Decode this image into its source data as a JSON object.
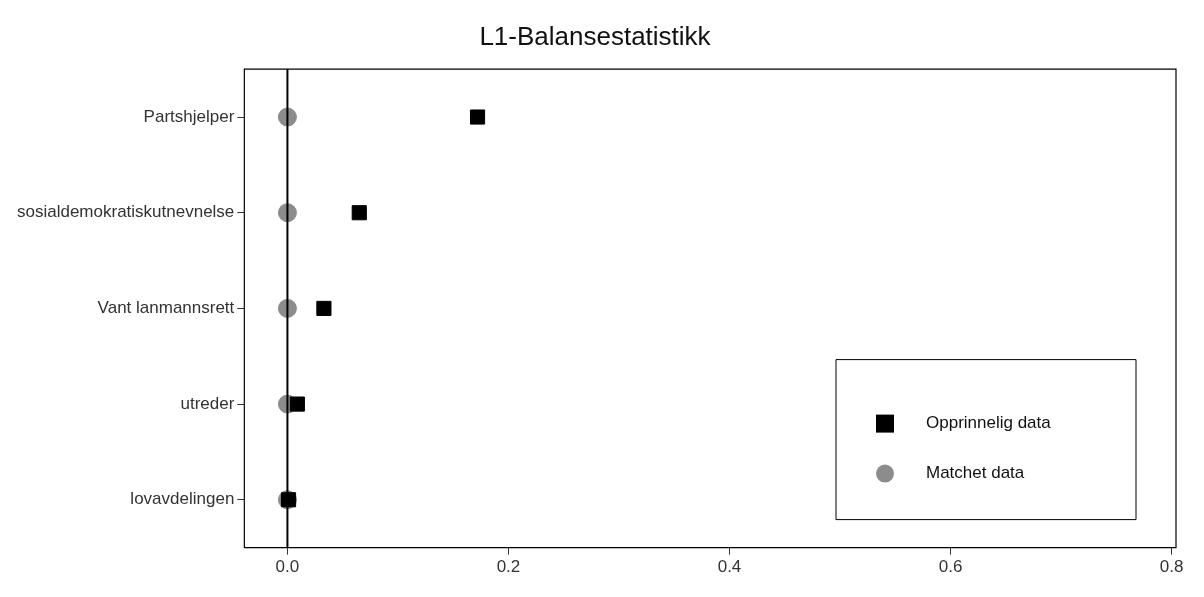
{
  "chart_data": {
    "type": "scatter",
    "title": "L1-Balansestatistikk",
    "orientation": "horizontal",
    "categories": [
      "Partshjelper",
      "sosialdemokratiskutnevnelse",
      "Vant lanmannsrett",
      "utreder",
      "lovavdelingen"
    ],
    "series": [
      {
        "name": "Opprinnelig data",
        "color": "#000000",
        "marker": "square",
        "values": [
          0.172,
          0.065,
          0.033,
          0.009,
          0.001
        ]
      },
      {
        "name": "Matchet data",
        "color": "#8c8c8c",
        "marker": "circle",
        "values": [
          0,
          0,
          0,
          0,
          0
        ]
      }
    ],
    "xlim": [
      -0.039,
      0.804
    ],
    "xticks": [
      {
        "value": 0,
        "label": "0.0"
      },
      {
        "value": 0.2,
        "label": "0.2"
      },
      {
        "value": 0.4,
        "label": "0.4"
      },
      {
        "value": 0.6,
        "label": "0.6"
      },
      {
        "value": 0.8,
        "label": "0.8"
      }
    ],
    "ref_lines": [
      {
        "axis": "x",
        "value": 0,
        "color": "#000000",
        "line_style": "solid"
      }
    ],
    "grid": false,
    "legend": "bottom right"
  }
}
